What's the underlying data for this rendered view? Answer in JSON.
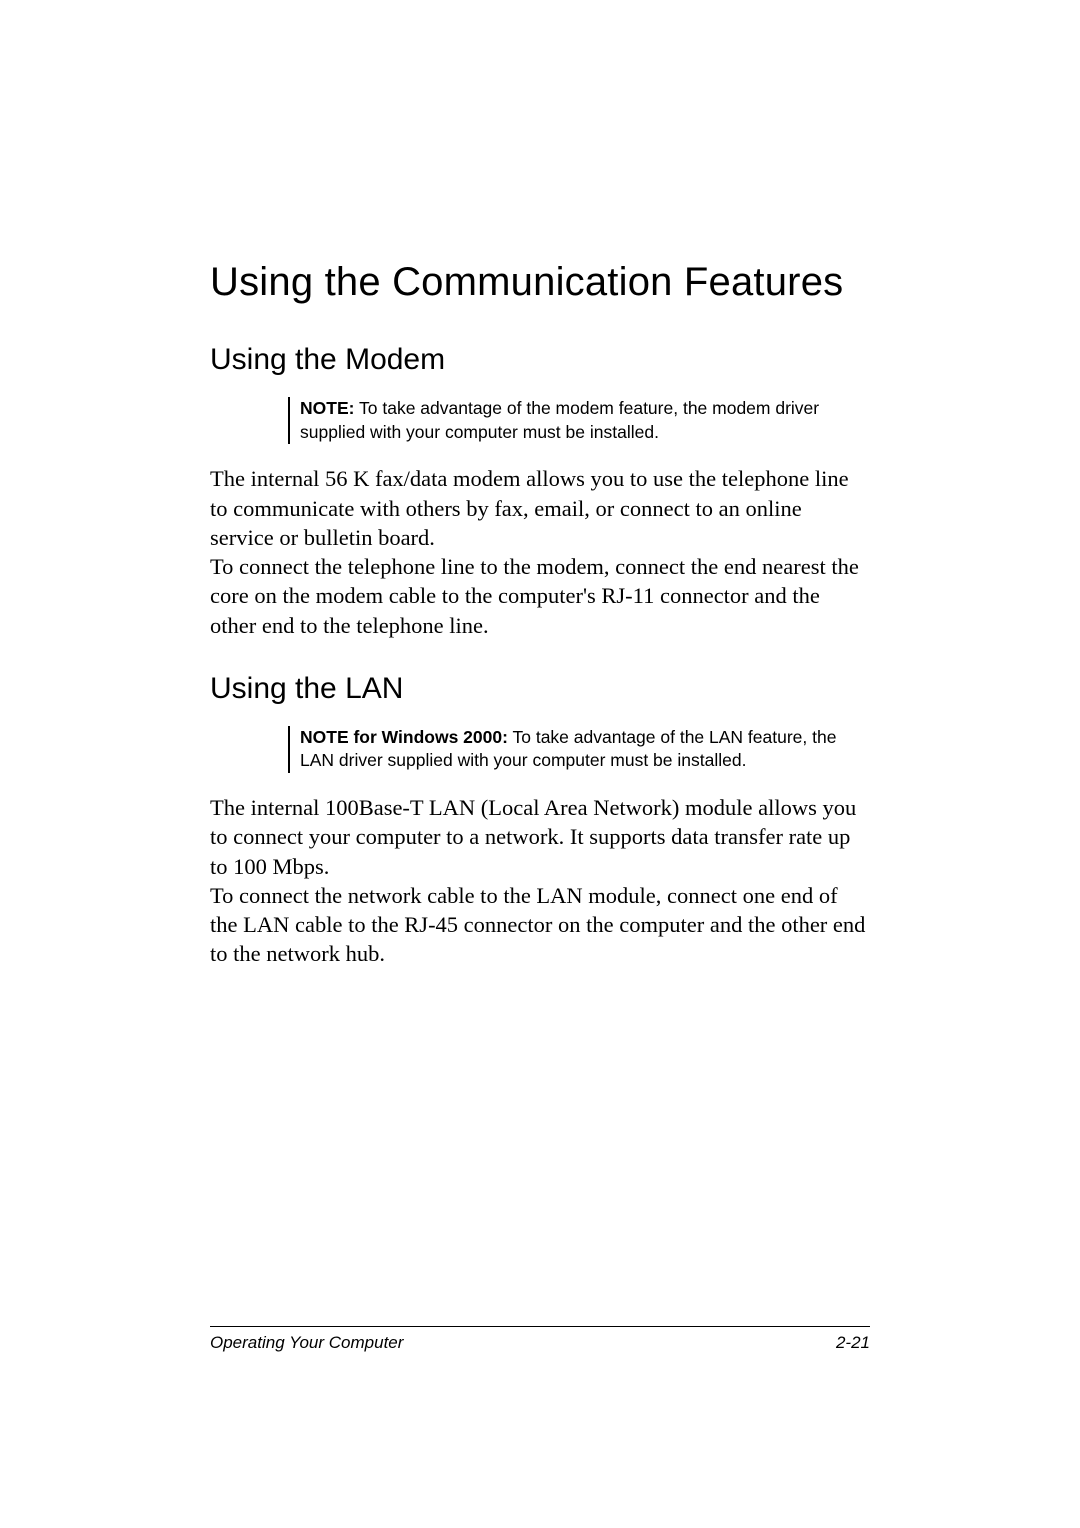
{
  "main_title": "Using the Communication Features",
  "section1": {
    "title": "Using the Modem",
    "note_label": "NOTE:",
    "note_text": " To take advantage of the modem feature, the modem driver supplied with your computer must be installed.",
    "para1": "The internal 56 K fax/data modem allows you to use the telephone line to communicate with others by fax, email, or connect to an online service or bulletin board.",
    "para2": "To connect the telephone line to the modem, connect the end nearest the core on the modem cable to the computer's RJ-11 connector and the other end to the telephone line."
  },
  "section2": {
    "title": "Using the LAN",
    "note_label": "NOTE for Windows 2000:",
    "note_text": " To take advantage of the LAN feature, the LAN driver supplied with your computer must be installed.",
    "para1": "The internal 100Base-T LAN (Local Area Network) module allows you to connect your computer to a network. It supports data transfer rate up to 100 Mbps.",
    "para2": "To connect the network cable to the LAN module, connect one end of the LAN cable to the RJ-45 connector on the computer and the other end to the network hub."
  },
  "footer": {
    "left": "Operating Your Computer",
    "right": "2-21"
  }
}
